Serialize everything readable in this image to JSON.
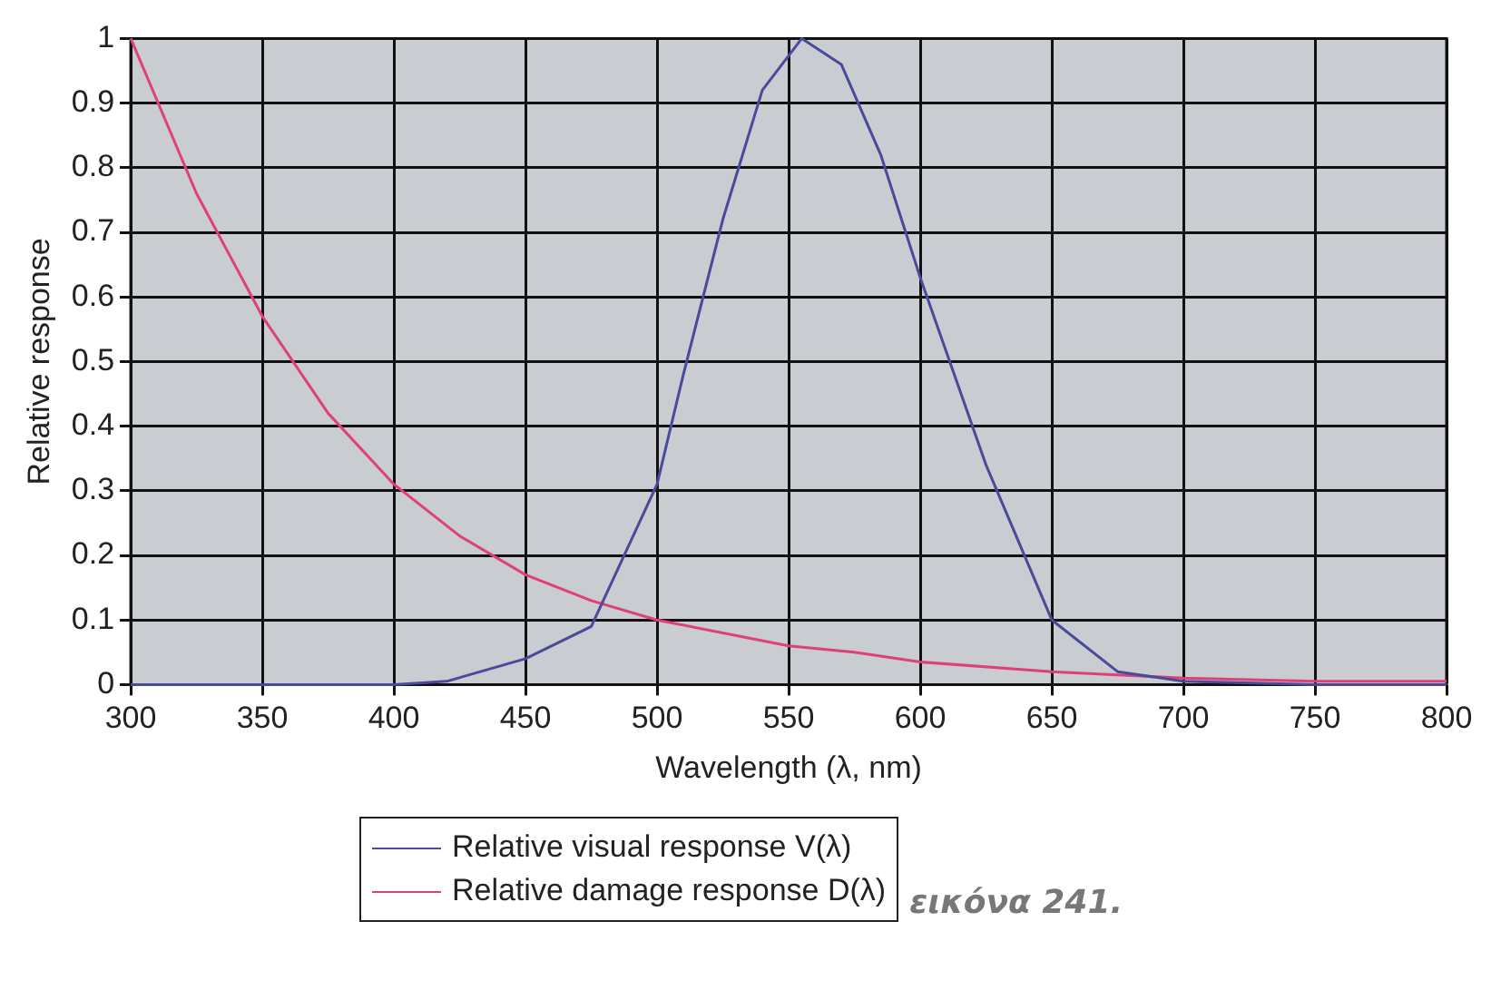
{
  "chart_data": {
    "type": "line",
    "xlabel": "Wavelength (λ, nm)",
    "ylabel": "Relative response",
    "xlim": [
      300,
      800
    ],
    "xticks": [
      300,
      350,
      400,
      450,
      500,
      550,
      600,
      650,
      700,
      750,
      800
    ],
    "ylim": [
      0,
      1
    ],
    "yticks": [
      0,
      0.1,
      0.2,
      0.3,
      0.4,
      0.5,
      0.6,
      0.7,
      0.8,
      0.9,
      1
    ],
    "grid": true,
    "legend": "bottom",
    "marker": "none",
    "line_style": "solid",
    "series": [
      {
        "name": "Relative visual response V(λ)",
        "color": "#4a4a9a",
        "x": [
          300,
          350,
          400,
          420,
          450,
          475,
          500,
          510,
          525,
          540,
          555,
          570,
          585,
          600,
          625,
          650,
          675,
          700,
          750,
          800
        ],
        "values": [
          0,
          0,
          0,
          0.005,
          0.04,
          0.09,
          0.31,
          0.48,
          0.72,
          0.92,
          1,
          0.96,
          0.82,
          0.63,
          0.34,
          0.1,
          0.02,
          0.005,
          0,
          0
        ]
      },
      {
        "name": "Relative damage response D(λ)",
        "color": "#e0407a",
        "x": [
          300,
          325,
          350,
          375,
          400,
          425,
          450,
          475,
          500,
          525,
          550,
          575,
          600,
          650,
          700,
          750,
          800
        ],
        "values": [
          1,
          0.76,
          0.57,
          0.42,
          0.31,
          0.23,
          0.17,
          0.13,
          0.1,
          0.08,
          0.06,
          0.05,
          0.035,
          0.02,
          0.01,
          0.005,
          0.005
        ]
      }
    ],
    "annotations": [
      "εικόνα 241."
    ]
  }
}
